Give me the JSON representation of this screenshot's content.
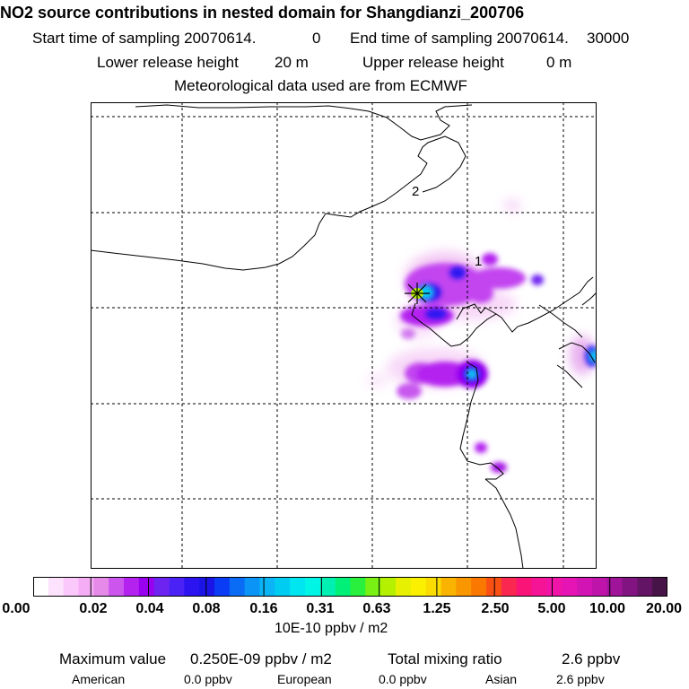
{
  "header": {
    "title": "NO2 source contributions in nested domain for Shangdianzi_200706",
    "start_label": "Start time of sampling 20070614.",
    "start_value": "0",
    "end_label": "End time of sampling 20070614.",
    "end_value": "30000",
    "lower_label": "Lower release height",
    "lower_value": "20 m",
    "upper_label": "Upper release height",
    "upper_value": "0 m",
    "met_line": "Meteorological data used are from ECMWF"
  },
  "map": {
    "point_labels": [
      "1",
      "2"
    ],
    "release_marker": "star-marker"
  },
  "colorbar": {
    "tick_labels": [
      "0.00",
      "0.02",
      "0.04",
      "0.08",
      "0.16",
      "0.31",
      "0.63",
      "1.25",
      "2.50",
      "5.00",
      "10.00",
      "20.00"
    ],
    "colors": [
      "#ffffff",
      "#fde2fd",
      "#fac8fa",
      "#f5adf5",
      "#e58ae8",
      "#cc55ee",
      "#b422f0",
      "#9a00f0",
      "#6e24f0",
      "#4b22f5",
      "#2c14f0",
      "#1a14e6",
      "#0a3cf5",
      "#0a6cf5",
      "#0a94f5",
      "#0ab4f5",
      "#00ccf2",
      "#00e6f0",
      "#00f5e6",
      "#00f0b4",
      "#00f078",
      "#28f03c",
      "#78f014",
      "#b4f000",
      "#e6f000",
      "#faf000",
      "#fadc00",
      "#fab400",
      "#fa9600",
      "#fa7800",
      "#fa5014",
      "#fa2850",
      "#fa1478",
      "#f51496",
      "#f014a8",
      "#e614b4",
      "#d214b4",
      "#be14aa",
      "#a0149a",
      "#821482",
      "#641464",
      "#461446"
    ],
    "units": "10E-10 ppbv / m2"
  },
  "footer": {
    "max_label": "Maximum value",
    "max_value": "0.250E-09 ppbv / m2",
    "total_label": "Total mixing ratio",
    "total_value": "2.6 ppbv",
    "sources": [
      {
        "name": "American",
        "value": "0.0 ppbv"
      },
      {
        "name": "European",
        "value": "0.0 ppbv"
      },
      {
        "name": "Asian",
        "value": "2.6 ppbv"
      }
    ]
  },
  "chart_data": {
    "type": "heatmap",
    "title": "NO2 source contributions in nested domain for Shangdianzi_200706",
    "colorbar_ticks": [
      0.0,
      0.02,
      0.04,
      0.08,
      0.16,
      0.31,
      0.63,
      1.25,
      2.5,
      5.0,
      10.0,
      20.0
    ],
    "colorbar_units": "10E-10 ppbv / m2",
    "maximum_value": "0.250E-09 ppbv / m2",
    "total_mixing_ratio_ppbv": 2.6,
    "contributions_ppbv": {
      "American": 0.0,
      "European": 0.0,
      "Asian": 2.6
    },
    "grid": true
  }
}
